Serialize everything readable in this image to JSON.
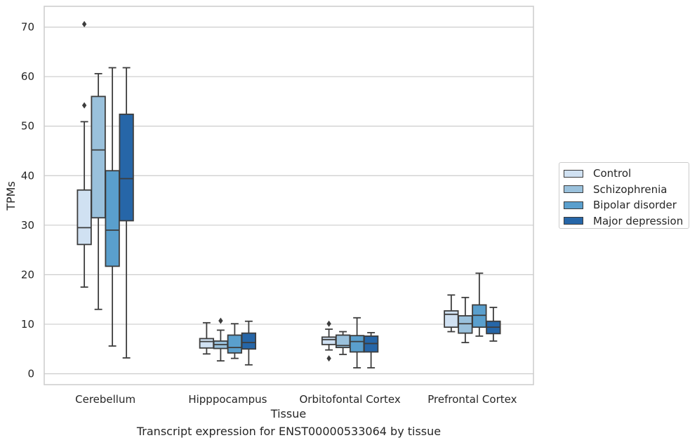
{
  "chart_data": {
    "type": "box",
    "xlabel": "Tissue",
    "ylabel": "TPMs",
    "ylim": [
      -2.2,
      74.2
    ],
    "yticks": [
      0,
      10,
      20,
      30,
      40,
      50,
      60,
      70
    ],
    "grid": "horizontal",
    "legend_position": "outside-right",
    "categories": [
      "Cerebellum",
      "Hipppocampus",
      "Orbitofontal Cortex",
      "Prefrontal Cortex"
    ],
    "series": [
      {
        "name": "Control",
        "color": "#d0e1f2",
        "boxes": [
          {
            "whislo": 17.5,
            "q1": 26.1,
            "med": 29.5,
            "q3": 37.1,
            "whishi": 50.9,
            "fliers": [
              54.2,
              70.6
            ]
          },
          {
            "whislo": 4.0,
            "q1": 5.2,
            "med": 6.5,
            "q3": 7.1,
            "whishi": 10.3,
            "fliers": []
          },
          {
            "whislo": 4.8,
            "q1": 5.9,
            "med": 6.9,
            "q3": 7.4,
            "whishi": 9.0,
            "fliers": [
              10.1,
              3.1
            ]
          },
          {
            "whislo": 8.5,
            "q1": 9.4,
            "med": 12.0,
            "q3": 12.7,
            "whishi": 15.9,
            "fliers": []
          }
        ]
      },
      {
        "name": "Schizophrenia",
        "color": "#9ac1dc",
        "boxes": [
          {
            "whislo": 13.0,
            "q1": 31.5,
            "med": 45.2,
            "q3": 56.0,
            "whishi": 60.6,
            "fliers": []
          },
          {
            "whislo": 2.6,
            "q1": 5.1,
            "med": 5.9,
            "q3": 6.6,
            "whishi": 8.8,
            "fliers": [
              10.7
            ]
          },
          {
            "whislo": 3.9,
            "q1": 5.3,
            "med": 5.7,
            "q3": 7.8,
            "whishi": 8.5,
            "fliers": []
          },
          {
            "whislo": 6.3,
            "q1": 8.2,
            "med": 10.1,
            "q3": 11.7,
            "whishi": 15.4,
            "fliers": []
          }
        ]
      },
      {
        "name": "Bipolar disorder",
        "color": "#5a9fcd",
        "boxes": [
          {
            "whislo": 5.6,
            "q1": 21.7,
            "med": 29.0,
            "q3": 41.0,
            "whishi": 61.8,
            "fliers": []
          },
          {
            "whislo": 3.1,
            "q1": 4.2,
            "med": 5.3,
            "q3": 7.8,
            "whishi": 10.1,
            "fliers": []
          },
          {
            "whislo": 1.2,
            "q1": 4.4,
            "med": 6.5,
            "q3": 7.7,
            "whishi": 11.3,
            "fliers": []
          },
          {
            "whislo": 7.6,
            "q1": 9.4,
            "med": 11.8,
            "q3": 13.9,
            "whishi": 20.3,
            "fliers": []
          }
        ]
      },
      {
        "name": "Major depression",
        "color": "#2666a8",
        "boxes": [
          {
            "whislo": 3.2,
            "q1": 30.9,
            "med": 39.4,
            "q3": 52.4,
            "whishi": 61.8,
            "fliers": []
          },
          {
            "whislo": 1.8,
            "q1": 5.0,
            "med": 6.3,
            "q3": 8.2,
            "whishi": 10.6,
            "fliers": []
          },
          {
            "whislo": 1.2,
            "q1": 4.4,
            "med": 6.1,
            "q3": 7.6,
            "whishi": 8.3,
            "fliers": []
          },
          {
            "whislo": 6.6,
            "q1": 8.1,
            "med": 9.4,
            "q3": 10.6,
            "whishi": 13.4,
            "fliers": []
          }
        ]
      }
    ]
  },
  "caption": "Transcript expression for ENST00000533064 by tissue"
}
